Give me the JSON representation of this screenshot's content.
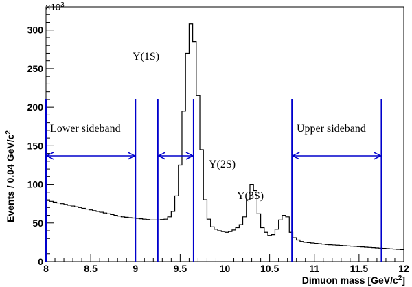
{
  "chart_data": {
    "type": "histogram",
    "xlabel_main": "Dimuon mass [GeV/c",
    "xlabel_sup": "2",
    "xlabel_end": "]",
    "ylabel_main": "Events / 0.04 GeV/c",
    "ylabel_sup": "2",
    "y_multiplier_base": "×10",
    "y_multiplier_exp": "3",
    "xlim": [
      8,
      12
    ],
    "ylim": [
      0,
      330
    ],
    "x_ticks": [
      8,
      8.5,
      9,
      9.5,
      10,
      10.5,
      11,
      11.5,
      12
    ],
    "x_tick_labels": [
      "8",
      "8.5",
      "9",
      "9.5",
      "10",
      "10.5",
      "11",
      "11.5",
      "12"
    ],
    "y_ticks": [
      0,
      50,
      100,
      150,
      200,
      250,
      300
    ],
    "y_tick_labels": [
      "0",
      "50",
      "100",
      "150",
      "200",
      "250",
      "300"
    ],
    "bin_width": 0.04,
    "bin_start": 8.0,
    "bin_values": [
      79,
      78,
      77,
      76,
      75,
      74,
      73,
      72,
      71,
      70,
      69,
      68,
      67,
      66,
      65,
      64,
      63,
      62,
      61,
      60,
      59,
      58,
      57.5,
      57,
      56.5,
      56,
      55.5,
      55,
      54.5,
      54,
      54,
      54,
      54.5,
      55,
      58,
      65,
      85,
      125,
      195,
      270,
      308,
      285,
      215,
      145,
      80,
      55,
      45,
      42,
      40,
      39,
      38,
      39,
      41,
      44,
      48,
      58,
      80,
      100,
      92,
      62,
      44,
      38,
      34,
      35,
      42,
      54,
      60,
      58,
      38,
      31,
      28,
      26,
      25,
      24.5,
      24,
      23.5,
      23,
      22.5,
      22,
      21.7,
      21.4,
      21.1,
      20.8,
      20.5,
      20.2,
      19.9,
      19.6,
      19.3,
      19,
      18.7,
      18.4,
      18.1,
      17.8,
      17.5,
      17.2,
      16.9,
      16.6,
      16.3,
      16,
      15.7
    ],
    "sideband_lines_x": [
      9.0,
      9.25,
      9.65,
      10.75,
      11.75
    ],
    "annotations": [
      {
        "text": "Lower sideband"
      },
      {
        "text": "Upper sideband"
      },
      {
        "text": "Υ(1S)"
      },
      {
        "text": "Υ(2S)"
      },
      {
        "text": "Υ(3S)"
      }
    ],
    "arrow_color": "#0000cc",
    "line_color": "#000000"
  }
}
